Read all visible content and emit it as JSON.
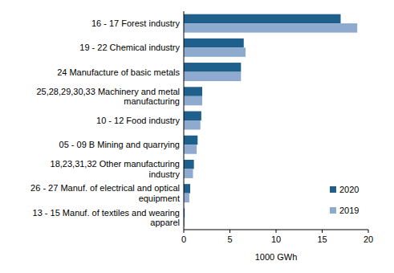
{
  "chart_data": {
    "type": "bar",
    "orientation": "horizontal",
    "categories": [
      "16 - 17 Forest industry",
      "19 - 22 Chemical industry",
      "24 Manufacture of basic metals",
      "25,28,29,30,33 Machinery and metal\nmanufacturing",
      "10 - 12 Food industry",
      "05 - 09 B Mining and quarrying",
      "18,23,31,32 Other manufacturing\nindustry",
      "26 - 27 Manuf. of electrical and  optical\nequipment",
      "13 - 15 Manuf. of textiles and  wearing\napparel"
    ],
    "series": [
      {
        "name": "2020",
        "color": "#1e5f8c",
        "values": [
          17.0,
          6.5,
          6.2,
          2.0,
          1.9,
          1.5,
          1.1,
          0.7,
          0.1
        ]
      },
      {
        "name": "2019",
        "color": "#8eaacf",
        "values": [
          18.8,
          6.7,
          6.2,
          2.0,
          1.8,
          1.4,
          1.0,
          0.6,
          0.1
        ]
      }
    ],
    "x_label": "1000 GWh",
    "xlim": [
      0,
      20
    ],
    "xticks": [
      0,
      5,
      10,
      15,
      20
    ],
    "grid": false,
    "legend": "right"
  }
}
